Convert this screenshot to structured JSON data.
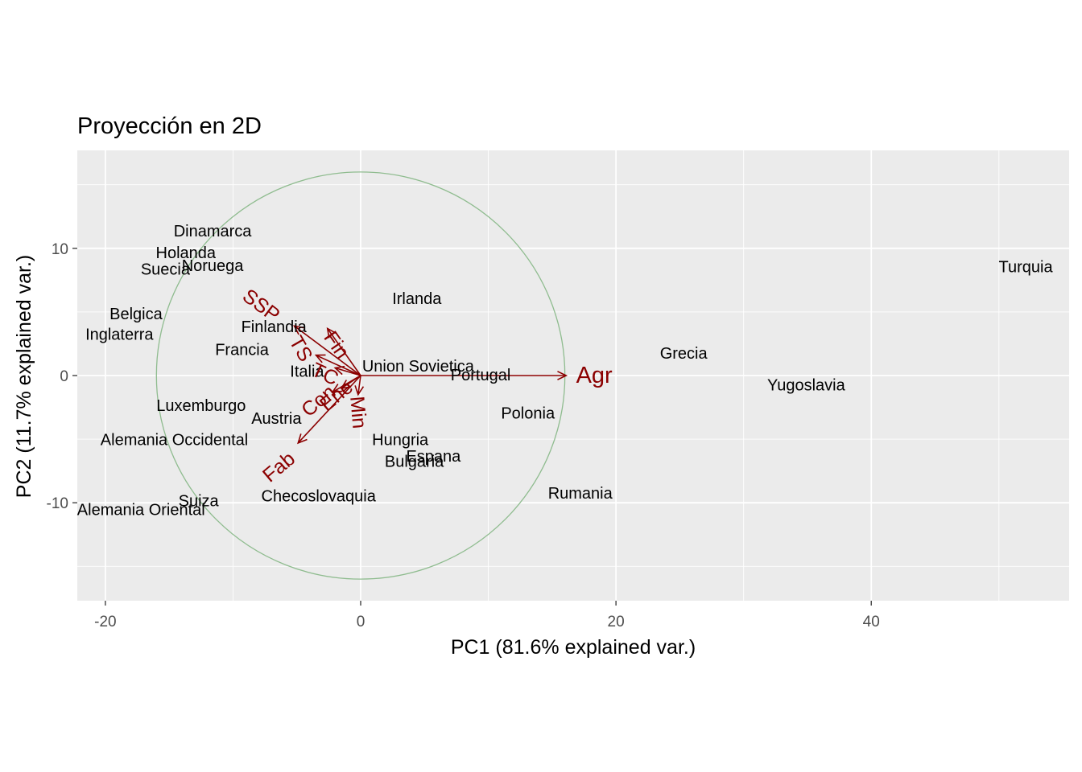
{
  "chart_data": {
    "type": "scatter",
    "subtype": "pca-biplot",
    "title": "Proyección en 2D",
    "xlabel": "PC1 (81.6% explained var.)",
    "ylabel": "PC2 (11.7% explained var.)",
    "xlim": [
      -22.2,
      55.5
    ],
    "ylim": [
      -17.7,
      17.7
    ],
    "x_ticks": [
      -20,
      0,
      20,
      40
    ],
    "y_ticks": [
      -10,
      0,
      10
    ],
    "grid": true,
    "legend": "none",
    "circle": {
      "center": [
        0,
        0
      ],
      "radius": 16
    },
    "points": [
      {
        "label": "Dinamarca",
        "x": -11.6,
        "y": 11.3
      },
      {
        "label": "Holanda",
        "x": -13.7,
        "y": 9.6
      },
      {
        "label": "Noruega",
        "x": -11.6,
        "y": 8.6
      },
      {
        "label": "Suecia",
        "x": -15.3,
        "y": 8.3
      },
      {
        "label": "Turquia",
        "x": 52.1,
        "y": 8.5
      },
      {
        "label": "Irlanda",
        "x": 4.4,
        "y": 6.0
      },
      {
        "label": "Belgica",
        "x": -17.6,
        "y": 4.8
      },
      {
        "label": "Finlandia",
        "x": -6.8,
        "y": 3.8
      },
      {
        "label": "Inglaterra",
        "x": -18.9,
        "y": 3.2
      },
      {
        "label": "Francia",
        "x": -9.3,
        "y": 2.0
      },
      {
        "label": "Grecia",
        "x": 25.3,
        "y": 1.7
      },
      {
        "label": "Union Sovietica",
        "x": 4.5,
        "y": 0.7
      },
      {
        "label": "Italia",
        "x": -4.2,
        "y": 0.3
      },
      {
        "label": "Portugal",
        "x": 9.4,
        "y": 0.0
      },
      {
        "label": "Yugoslavia",
        "x": 34.9,
        "y": -0.8
      },
      {
        "label": "Luxemburgo",
        "x": -12.5,
        "y": -2.4
      },
      {
        "label": "Polonia",
        "x": 13.1,
        "y": -3.0
      },
      {
        "label": "Austria",
        "x": -6.6,
        "y": -3.4
      },
      {
        "label": "Alemania Occidental",
        "x": -14.6,
        "y": -5.1
      },
      {
        "label": "Hungria",
        "x": 3.1,
        "y": -5.1
      },
      {
        "label": "Espana",
        "x": 5.7,
        "y": -6.4
      },
      {
        "label": "Bulgaria",
        "x": 4.2,
        "y": -6.8
      },
      {
        "label": "Rumania",
        "x": 17.2,
        "y": -9.3
      },
      {
        "label": "Checoslovaquia",
        "x": -3.3,
        "y": -9.5
      },
      {
        "label": "Suiza",
        "x": -12.7,
        "y": -9.9
      },
      {
        "label": "Alemania Oriental",
        "x": -17.2,
        "y": -10.6
      }
    ],
    "loadings": [
      {
        "label": "Agr",
        "x": 16.1,
        "y": 0.0,
        "label_x": 18.3,
        "label_y": 0.0,
        "angle": 0,
        "size": 29
      },
      {
        "label": "SSP",
        "x": -5.2,
        "y": 3.9,
        "label_x": -7.8,
        "label_y": 5.5,
        "angle": 37,
        "size": 25
      },
      {
        "label": "Fin",
        "x": -2.6,
        "y": 3.7,
        "label_x": -1.9,
        "label_y": 2.4,
        "angle": 55,
        "size": 25
      },
      {
        "label": "TS",
        "x": -3.5,
        "y": 1.6,
        "label_x": -4.7,
        "label_y": 2.1,
        "angle": 60,
        "size": 25
      },
      {
        "label": "TC",
        "x": -2.0,
        "y": 0.6,
        "label_x": -2.8,
        "label_y": 0.1,
        "angle": 25,
        "size": 25
      },
      {
        "label": "Ene",
        "x": -1.5,
        "y": -1.0,
        "label_x": -1.9,
        "label_y": -1.6,
        "angle": -40,
        "size": 25
      },
      {
        "label": "Con",
        "x": -2.2,
        "y": -1.3,
        "label_x": -3.3,
        "label_y": -2.0,
        "angle": -40,
        "size": 25
      },
      {
        "label": "Min",
        "x": -0.2,
        "y": -1.5,
        "label_x": -0.2,
        "label_y": -2.9,
        "angle": 85,
        "size": 25
      },
      {
        "label": "Fab",
        "x": -4.9,
        "y": -5.3,
        "label_x": -6.4,
        "label_y": -7.2,
        "angle": -40,
        "size": 25
      }
    ],
    "colors": {
      "panel": "#ebebeb",
      "grid_major": "#ffffff",
      "circle": "#8fbc8f",
      "arrow": "#8b0000",
      "tick_label": "#4d4d4d"
    }
  }
}
